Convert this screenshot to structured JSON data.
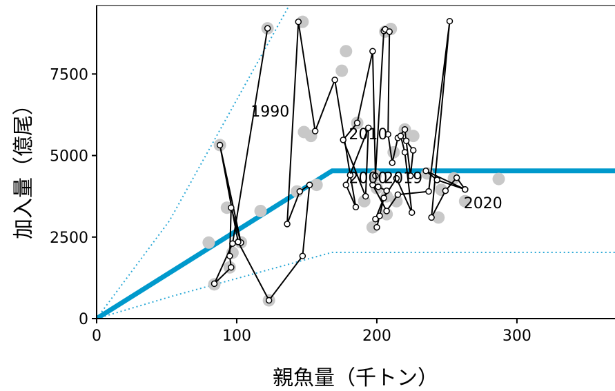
{
  "chart_data": {
    "type": "scatter",
    "title": "",
    "xlabel": "親魚量（千トン）",
    "ylabel": "加入量（億尾）",
    "xlim": [
      0,
      370
    ],
    "ylim": [
      0,
      9600
    ],
    "xticks": [
      0,
      100,
      200,
      300
    ],
    "yticks": [
      0,
      2500,
      5000,
      7500
    ],
    "grid": false,
    "colors": {
      "hockey_stick": "#0099cc",
      "band": "#2aa8d6",
      "observed": "#000000",
      "gray_point": "#c8c8c8"
    },
    "hockey_stick": {
      "x": [
        0,
        168,
        370
      ],
      "y": [
        0,
        4530,
        4530
      ]
    },
    "band_upper": {
      "x": [
        0,
        52,
        140
      ],
      "y": [
        0,
        3000,
        9800
      ]
    },
    "band_lower": {
      "x": [
        0,
        55,
        168,
        370
      ],
      "y": [
        0,
        700,
        2030,
        2030
      ]
    },
    "observed_series": {
      "x": [
        122,
        97,
        84,
        96,
        95,
        96,
        103,
        88,
        101,
        123,
        147,
        152,
        145,
        136,
        144,
        156,
        170,
        181,
        185,
        178,
        194,
        192,
        176,
        186,
        197,
        199,
        205,
        206,
        209,
        208,
        211,
        215,
        220,
        224,
        226,
        221,
        217,
        220,
        225,
        214,
        205,
        200,
        202,
        199,
        207,
        201,
        197,
        207,
        215,
        237,
        252,
        239,
        249,
        257,
        263,
        235,
        243,
        263
      ],
      "y": [
        8900,
        2300,
        1070,
        1570,
        1920,
        3400,
        2330,
        5320,
        2350,
        560,
        1920,
        4100,
        3900,
        2900,
        9100,
        5750,
        7320,
        4400,
        3420,
        4100,
        5850,
        3750,
        5480,
        6000,
        8200,
        4380,
        8820,
        8870,
        8800,
        5650,
        4780,
        5540,
        5800,
        4380,
        5160,
        5450,
        5600,
        5100,
        3250,
        4300,
        3700,
        2800,
        3150,
        3050,
        3920,
        4040,
        4100,
        3300,
        3800,
        3900,
        9120,
        3100,
        3920,
        4320,
        3960,
        4530,
        4250,
        3960
      ]
    },
    "gray_points": {
      "x": [
        80,
        84,
        93,
        95,
        97,
        103,
        117,
        88,
        122,
        123,
        143,
        147,
        148,
        153,
        157,
        175,
        178,
        186,
        191,
        197,
        199,
        200,
        206,
        207,
        207,
        210,
        212,
        214,
        220,
        226,
        236,
        244,
        246,
        255,
        263,
        287
      ],
      "y": [
        2330,
        1050,
        3400,
        1570,
        2020,
        2340,
        3300,
        5320,
        8900,
        560,
        3900,
        9100,
        5720,
        5600,
        4100,
        7600,
        8200,
        6000,
        3600,
        2800,
        4380,
        4000,
        8800,
        3200,
        3750,
        8880,
        5100,
        3600,
        5800,
        5600,
        4450,
        3100,
        3950,
        4300,
        3600,
        4280
      ]
    },
    "annotations": [
      {
        "text": "1990",
        "x": 110,
        "y": 6200
      },
      {
        "text": "2010",
        "x": 180,
        "y": 5500
      },
      {
        "text": "2000",
        "x": 180,
        "y": 4150
      },
      {
        "text": "2019",
        "x": 205,
        "y": 4150
      },
      {
        "text": "2020",
        "x": 262,
        "y": 3380
      }
    ]
  }
}
